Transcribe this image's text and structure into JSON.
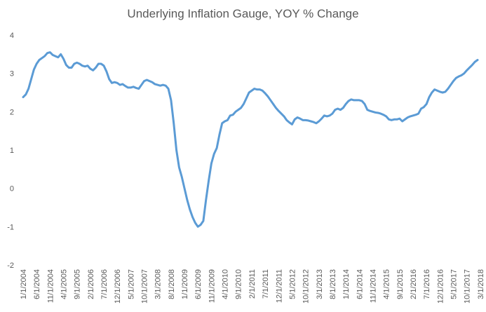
{
  "chart_data": {
    "type": "line",
    "title": "Underlying Inflation Gauge, YOY % Change",
    "xlabel": "",
    "ylabel": "",
    "ylim": [
      -2,
      4
    ],
    "yticks": [
      "4",
      "3",
      "2",
      "1",
      "0",
      "-1",
      "-2"
    ],
    "ytick_values": [
      4,
      3,
      2,
      1,
      0,
      -1,
      -2
    ],
    "xtick_labels": [
      "1/1/2004",
      "6/1/2004",
      "11/1/2004",
      "4/1/2005",
      "9/1/2005",
      "2/1/2006",
      "7/1/2006",
      "12/1/2006",
      "5/1/2007",
      "10/1/2007",
      "3/1/2008",
      "8/1/2008",
      "1/1/2009",
      "6/1/2009",
      "11/1/2009",
      "4/1/2010",
      "9/1/2010",
      "2/1/2011",
      "7/1/2011",
      "12/1/2011",
      "5/1/2012",
      "10/1/2012",
      "3/1/2013",
      "8/1/2013",
      "1/1/2014",
      "6/1/2014",
      "11/1/2014",
      "4/1/2015",
      "9/1/2015",
      "2/1/2016",
      "7/1/2016",
      "12/1/2016",
      "5/1/2017",
      "10/1/2017",
      "3/1/2018"
    ],
    "grid": false,
    "legend": "none",
    "color": "#5b9bd5",
    "x_start": "1/1/2004",
    "x_step": "1 month",
    "series": [
      {
        "values": [
          2.38,
          2.45,
          2.6,
          2.85,
          3.1,
          3.25,
          3.35,
          3.4,
          3.45,
          3.53,
          3.55,
          3.48,
          3.45,
          3.42,
          3.5,
          3.38,
          3.22,
          3.15,
          3.15,
          3.25,
          3.28,
          3.25,
          3.2,
          3.18,
          3.2,
          3.12,
          3.08,
          3.15,
          3.25,
          3.25,
          3.2,
          3.05,
          2.85,
          2.75,
          2.77,
          2.75,
          2.7,
          2.72,
          2.67,
          2.63,
          2.63,
          2.65,
          2.62,
          2.6,
          2.7,
          2.8,
          2.83,
          2.8,
          2.77,
          2.72,
          2.7,
          2.68,
          2.7,
          2.68,
          2.6,
          2.3,
          1.7,
          1.0,
          0.55,
          0.3,
          0.0,
          -0.3,
          -0.55,
          -0.75,
          -0.9,
          -1.0,
          -0.95,
          -0.85,
          -0.3,
          0.2,
          0.65,
          0.9,
          1.05,
          1.4,
          1.7,
          1.75,
          1.78,
          1.9,
          1.92,
          2.0,
          2.05,
          2.1,
          2.2,
          2.35,
          2.5,
          2.55,
          2.6,
          2.58,
          2.58,
          2.55,
          2.48,
          2.4,
          2.3,
          2.2,
          2.1,
          2.02,
          1.95,
          1.88,
          1.78,
          1.72,
          1.67,
          1.8,
          1.85,
          1.82,
          1.78,
          1.78,
          1.77,
          1.75,
          1.73,
          1.7,
          1.75,
          1.82,
          1.9,
          1.88,
          1.9,
          1.95,
          2.05,
          2.08,
          2.05,
          2.1,
          2.2,
          2.28,
          2.32,
          2.3,
          2.3,
          2.3,
          2.28,
          2.2,
          2.05,
          2.02,
          2.0,
          1.98,
          1.97,
          1.95,
          1.92,
          1.88,
          1.8,
          1.78,
          1.8,
          1.8,
          1.82,
          1.75,
          1.8,
          1.85,
          1.88,
          1.9,
          1.92,
          1.95,
          2.08,
          2.12,
          2.2,
          2.38,
          2.5,
          2.58,
          2.55,
          2.52,
          2.5,
          2.52,
          2.6,
          2.7,
          2.8,
          2.88,
          2.92,
          2.95,
          3.0,
          3.08,
          3.15,
          3.22,
          3.3,
          3.35
        ]
      }
    ]
  }
}
